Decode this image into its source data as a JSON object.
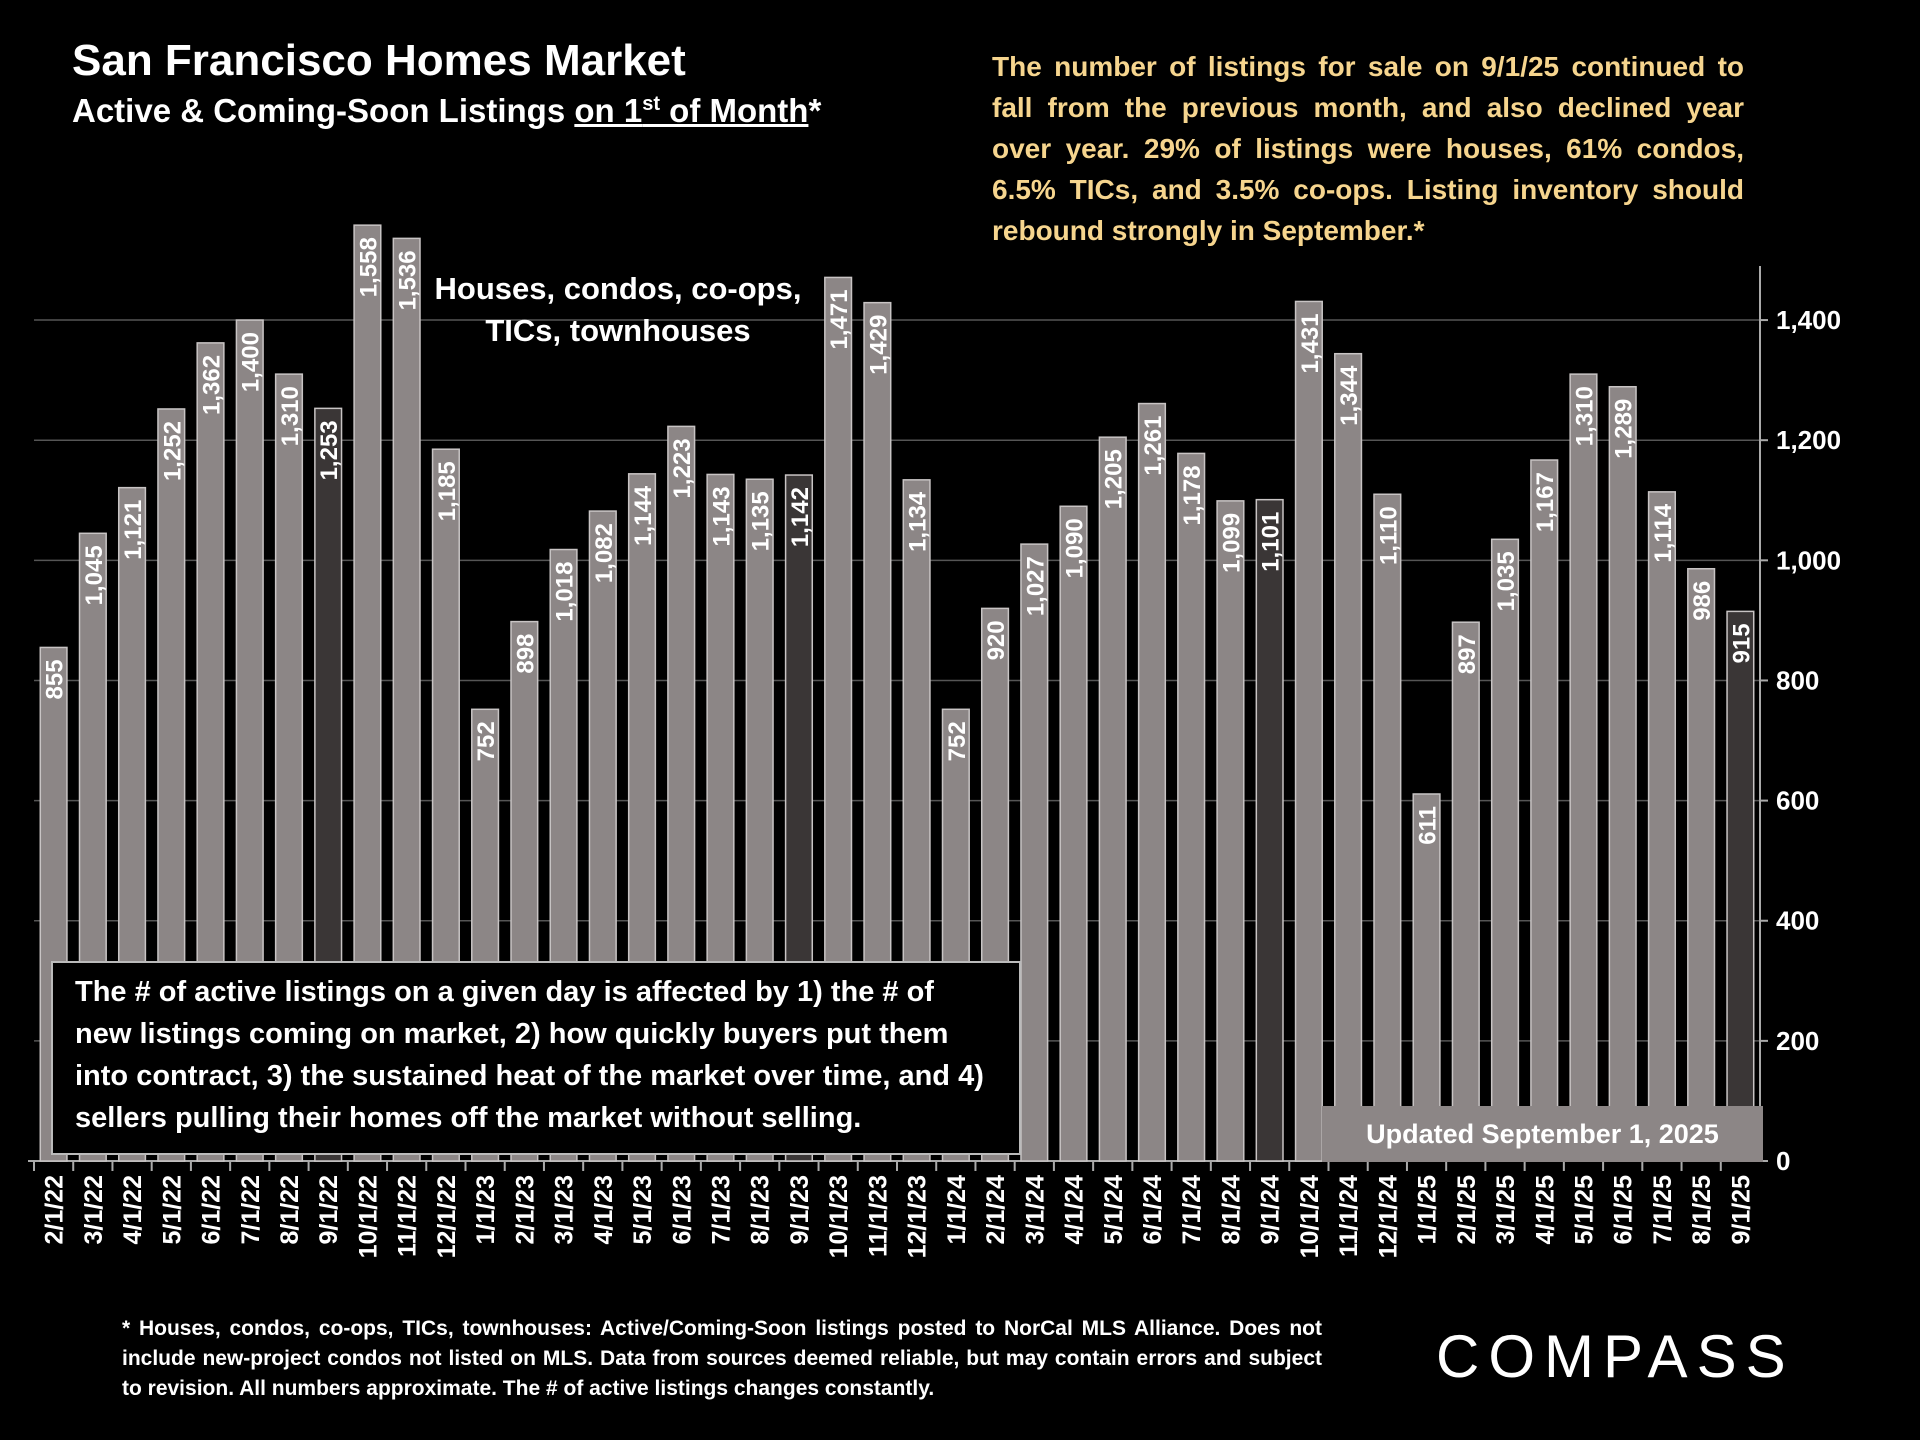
{
  "chart_data": {
    "type": "bar",
    "title": "San Francisco Homes Market",
    "subtitle_parts": [
      "Active & Coming-Soon Listings ",
      "on 1",
      "st",
      " of Month",
      "*"
    ],
    "annotation": "The number of listings for sale on 9/1/25 continued to fall from the previous month, and also declined year over year. 29% of listings were houses, 61% condos, 6.5% TICs, and 3.5% co-ops. Listing inventory should rebound strongly in September.*",
    "series_label": "Houses, condos, co-ops, TICs, townhouses",
    "box_note": "The # of active listings on a given day is affected by 1) the # of new listings coming on market, 2) how quickly buyers put them into contract, 3) the sustained heat of the market over time, and 4) sellers pulling their homes off the market without selling.",
    "updated": "Updated September 1, 2025",
    "footnote": "* Houses, condos, co-ops, TICs, townhouses: Active/Coming-Soon listings posted to NorCal MLS Alliance. Does not include new-project condos not listed on MLS. Data from sources deemed reliable, but may contain errors and subject to revision. All numbers approximate. The # of active listings changes constantly.",
    "logo": "COMPASS",
    "categories": [
      "2/1/22",
      "3/1/22",
      "4/1/22",
      "5/1/22",
      "6/1/22",
      "7/1/22",
      "8/1/22",
      "9/1/22",
      "10/1/22",
      "11/1/22",
      "12/1/22",
      "1/1/23",
      "2/1/23",
      "3/1/23",
      "4/1/23",
      "5/1/23",
      "6/1/23",
      "7/1/23",
      "8/1/23",
      "9/1/23",
      "10/1/23",
      "11/1/23",
      "12/1/23",
      "1/1/24",
      "2/1/24",
      "3/1/24",
      "4/1/24",
      "5/1/24",
      "6/1/24",
      "7/1/24",
      "8/1/24",
      "9/1/24",
      "10/1/24",
      "11/1/24",
      "12/1/24",
      "1/1/25",
      "2/1/25",
      "3/1/25",
      "4/1/25",
      "5/1/25",
      "6/1/25",
      "7/1/25",
      "8/1/25",
      "9/1/25"
    ],
    "values": [
      855,
      1045,
      1121,
      1252,
      1362,
      1400,
      1310,
      1253,
      1558,
      1536,
      1185,
      752,
      898,
      1018,
      1082,
      1144,
      1223,
      1143,
      1135,
      1142,
      1471,
      1429,
      1134,
      752,
      920,
      1027,
      1090,
      1205,
      1261,
      1178,
      1099,
      1101,
      1431,
      1344,
      1110,
      611,
      897,
      1035,
      1167,
      1310,
      1289,
      1114,
      986,
      915
    ],
    "value_labels": [
      "855",
      "1,045",
      "1,121",
      "1,252",
      "1,362",
      "1,400",
      "1,310",
      "1,253",
      "1,558",
      "1,536",
      "1,185",
      "752",
      "898",
      "1,018",
      "1,082",
      "1,144",
      "1,223",
      "1,143",
      "1,135",
      "1,142",
      "1,471",
      "1,429",
      "1,134",
      "752",
      "920",
      "1,027",
      "1,090",
      "1,205",
      "1,261",
      "1,178",
      "1,099",
      "1,101",
      "1,431",
      "1,344",
      "1,110",
      "611",
      "897",
      "1,035",
      "1,167",
      "1,310",
      "1,289",
      "1,114",
      "986",
      "915"
    ],
    "bar_colors": [
      "#8c8686",
      "#8c8686",
      "#8c8686",
      "#8c8686",
      "#8c8686",
      "#8c8686",
      "#8c8686",
      "#3a3636",
      "#8c8686",
      "#8c8686",
      "#8c8686",
      "#8c8686",
      "#8c8686",
      "#8c8686",
      "#8c8686",
      "#8c8686",
      "#8c8686",
      "#8c8686",
      "#8c8686",
      "#3a3636",
      "#8c8686",
      "#8c8686",
      "#8c8686",
      "#8c8686",
      "#8c8686",
      "#8c8686",
      "#8c8686",
      "#8c8686",
      "#8c8686",
      "#8c8686",
      "#8c8686",
      "#3a3636",
      "#8c8686",
      "#8c8686",
      "#8c8686",
      "#8c8686",
      "#8c8686",
      "#8c8686",
      "#8c8686",
      "#8c8686",
      "#8c8686",
      "#8c8686",
      "#8c8686",
      "#3a3636"
    ],
    "ylim": [
      0,
      1490
    ],
    "yticks": [
      0,
      200,
      400,
      600,
      800,
      {
        "value": 1000,
        "label": "1,000"
      },
      {
        "value": 1200,
        "label": "1,200"
      },
      {
        "value": 1400,
        "label": "1,400"
      }
    ],
    "grid": true
  }
}
